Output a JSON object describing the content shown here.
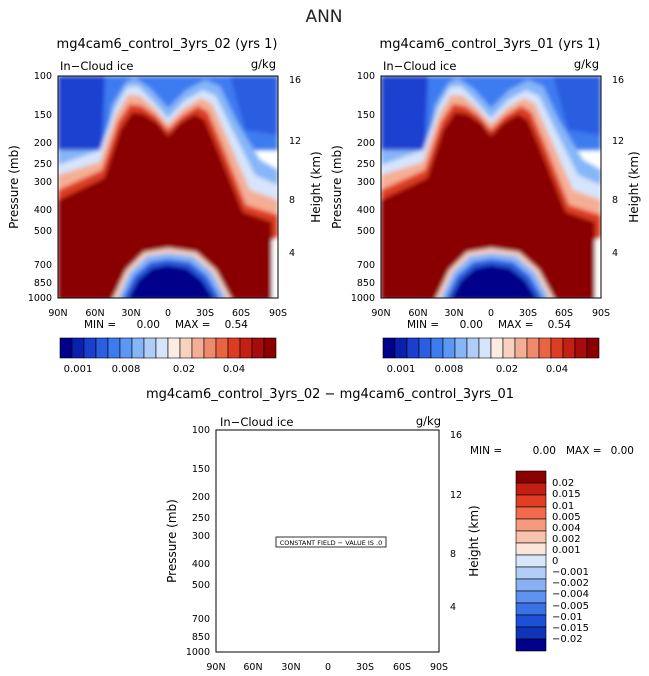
{
  "figure": {
    "title": "ANN",
    "diff_title": "mg4cam6_control_3yrs_02 − mg4cam6_control_3yrs_01"
  },
  "colors": {
    "ramp": [
      "#00008a",
      "#0a21b0",
      "#1a3fcf",
      "#2a5de0",
      "#3d7bf0",
      "#5d97f5",
      "#86b5f8",
      "#b0cdf9",
      "#d6e5fb",
      "#fbece1",
      "#f8d2c1",
      "#f4ae94",
      "#f08a6c",
      "#ea6444",
      "#dd3c24",
      "#c41f14",
      "#a60c0c",
      "#8a0000"
    ],
    "diff": [
      "#8a0000",
      "#c21e12",
      "#e23e24",
      "#f26a4b",
      "#f59a7d",
      "#f8c3ad",
      "#fbe6dc",
      "#d8e7fb",
      "#b2cdf8",
      "#89b1f4",
      "#5f92ee",
      "#3a72e6",
      "#1d50d8",
      "#0f34b8",
      "#00008a"
    ]
  },
  "chart_data": [
    {
      "type": "contour",
      "title": "mg4cam6_control_3yrs_02 (yrs 1)",
      "variable": "In−Cloud ice",
      "units": "g/kg",
      "ylabel": "Pressure (mb)",
      "y2label": "Height (km)",
      "x_ticks": [
        "90N",
        "60N",
        "30N",
        "0",
        "30S",
        "60S",
        "90S"
      ],
      "y_ticks": [
        100,
        150,
        200,
        250,
        300,
        400,
        500,
        700,
        850,
        1000
      ],
      "height_ticks": [
        16,
        12,
        8,
        4
      ],
      "stats": {
        "min_label": "MIN =",
        "min": "0.00",
        "max_label": "MAX =",
        "max": "0.54"
      },
      "colorbar_labels": [
        "0.001",
        "0.008",
        "0.02",
        "0.04"
      ]
    },
    {
      "type": "contour",
      "title": "mg4cam6_control_3yrs_01 (yrs 1)",
      "variable": "In−Cloud ice",
      "units": "g/kg",
      "ylabel": "Pressure (mb)",
      "y2label": "Height (km)",
      "x_ticks": [
        "90N",
        "60N",
        "30N",
        "0",
        "30S",
        "60S",
        "90S"
      ],
      "y_ticks": [
        100,
        150,
        200,
        250,
        300,
        400,
        500,
        700,
        850,
        1000
      ],
      "height_ticks": [
        16,
        12,
        8,
        4
      ],
      "stats": {
        "min_label": "MIN =",
        "min": "0.00",
        "max_label": "MAX =",
        "max": "0.54"
      },
      "colorbar_labels": [
        "0.001",
        "0.008",
        "0.02",
        "0.04"
      ]
    },
    {
      "type": "contour",
      "variable": "In−Cloud ice",
      "units": "g/kg",
      "ylabel": "Pressure (mb)",
      "y2label": "Height (km)",
      "x_ticks": [
        "90N",
        "60N",
        "30N",
        "0",
        "30S",
        "60S",
        "90S"
      ],
      "y_ticks": [
        100,
        150,
        200,
        250,
        300,
        400,
        500,
        700,
        850,
        1000
      ],
      "height_ticks": [
        16,
        12,
        8,
        4
      ],
      "stats": {
        "min_label": "MIN =",
        "min": "0.00",
        "max_label": "MAX =",
        "max": "0.00"
      },
      "note": "CONSTANT FIELD − VALUE IS .0",
      "colorbar_labels": [
        "0.02",
        "0.015",
        "0.01",
        "0.005",
        "0.004",
        "0.002",
        "0.001",
        "0",
        "−0.001",
        "−0.002",
        "−0.004",
        "−0.005",
        "−0.01",
        "−0.015",
        "−0.02"
      ]
    }
  ]
}
